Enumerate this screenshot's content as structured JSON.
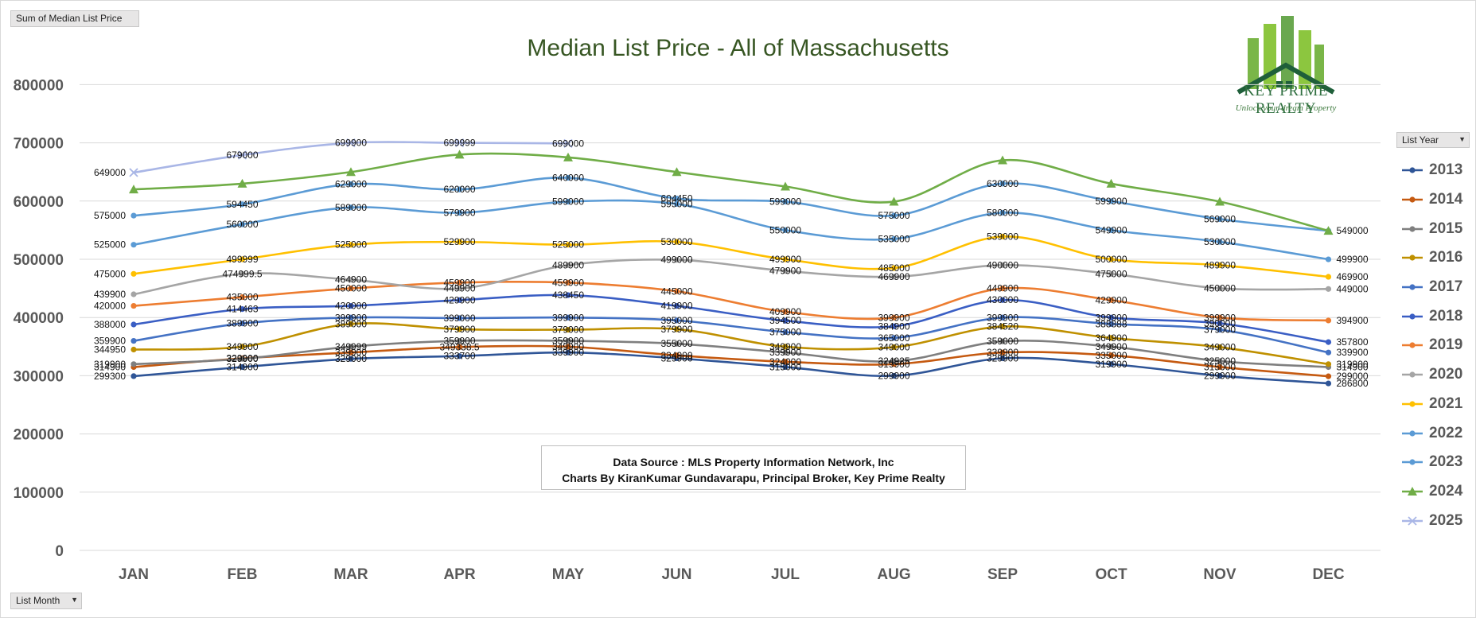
{
  "filters": {
    "sum_field": "Sum of Median List Price",
    "row_field": "List Month",
    "column_field": "List Year"
  },
  "logo": {
    "name": "KEY PRIME REALTY",
    "tagline": "Unlock your dream Property"
  },
  "source_note": {
    "line1": "Data Source : MLS Property Information Network, Inc",
    "line2": "Charts By KiranKumar Gundavarapu, Principal Broker, Key Prime Realty"
  },
  "colors": {
    "title": "#375623",
    "axis_text": "#595959",
    "gridline": "#d9d9d9"
  },
  "chart_data": {
    "type": "line",
    "title": "Median List Price - All of Massachusetts",
    "xlabel": "",
    "ylabel": "",
    "ylim": [
      0,
      800000
    ],
    "yticks": [
      "0",
      "100000",
      "200000",
      "300000",
      "400000",
      "500000",
      "600000",
      "700000",
      "800000"
    ],
    "grid": true,
    "legend_position": "right",
    "categories": [
      "JAN",
      "FEB",
      "MAR",
      "APR",
      "MAY",
      "JUN",
      "JUL",
      "AUG",
      "SEP",
      "OCT",
      "NOV",
      "DEC"
    ],
    "series": [
      {
        "name": "2013",
        "color": "#2f5597",
        "marker": "circle",
        "values": [
          299300,
          314900,
          329000,
          333700,
          339900,
          329900,
          315000,
          299900,
          329900,
          319900,
          299900,
          286800
        ]
      },
      {
        "name": "2014",
        "color": "#c55a11",
        "marker": "circle",
        "values": [
          314900,
          329900,
          339900,
          349338.5,
          349900,
          334900,
          324000,
          319900,
          339900,
          335000,
          315000,
          299000
        ]
      },
      {
        "name": "2015",
        "color": "#7f7f7f",
        "marker": "circle",
        "values": [
          319900,
          329000,
          349999,
          359900,
          359900,
          355000,
          339900,
          324925,
          359000,
          349900,
          325000,
          314900
        ]
      },
      {
        "name": "2016",
        "color": "#bf9000",
        "marker": "circle",
        "values": [
          344950,
          349900,
          389000,
          379900,
          379000,
          379900,
          349900,
          349000,
          384520,
          364900,
          349000,
          319900
        ]
      },
      {
        "name": "2017",
        "color": "#4472c4",
        "marker": "circle",
        "values": [
          359900,
          389900,
          399900,
          399000,
          399900,
          395000,
          375000,
          365000,
          399900,
          388888,
          379000,
          339900
        ]
      },
      {
        "name": "2018",
        "color": "#3a5ec4",
        "marker": "circle",
        "values": [
          388000,
          414463,
          420000,
          429900,
          438450,
          419900,
          394500,
          384900,
          430000,
          399900,
          390000,
          357800
        ]
      },
      {
        "name": "2019",
        "color": "#ed7d31",
        "marker": "circle",
        "values": [
          420000,
          435000,
          450000,
          459900,
          459900,
          445000,
          409900,
          399900,
          449900,
          429900,
          399900,
          394900
        ]
      },
      {
        "name": "2020",
        "color": "#a5a5a5",
        "marker": "circle",
        "values": [
          439900,
          474999.5,
          464900,
          449900,
          489900,
          499000,
          479900,
          469900,
          490000,
          475000,
          450000,
          449000
        ]
      },
      {
        "name": "2021",
        "color": "#ffc000",
        "marker": "circle",
        "values": [
          475000,
          499999,
          525000,
          529900,
          525000,
          530000,
          499900,
          485000,
          539000,
          500000,
          489900,
          469900
        ]
      },
      {
        "name": "2022",
        "color": "#5b9bd5",
        "marker": "circle",
        "values": [
          525000,
          560000,
          589000,
          579900,
          599000,
          595000,
          550000,
          535000,
          580000,
          549900,
          530000,
          499900
        ]
      },
      {
        "name": "2023",
        "color": "#5b9bd5",
        "marker": "circle",
        "values": [
          575000,
          594450,
          629000,
          620000,
          640000,
          604450,
          599000,
          575000,
          630000,
          599900,
          569000,
          549000
        ]
      },
      {
        "name": "2024",
        "color": "#70ad47",
        "marker": "triangle",
        "values": [
          620000,
          629900,
          649900,
          679900,
          675000,
          649900,
          625000,
          599000,
          670000,
          629900,
          599000,
          549000
        ]
      },
      {
        "name": "2025",
        "color": "#a9b6e6",
        "marker": "cross",
        "values": [
          649000,
          679000,
          699900,
          699999,
          699000,
          null,
          null,
          null,
          null,
          null,
          null,
          null
        ]
      }
    ],
    "data_labels": [
      {
        "c": 0,
        "v": 649000,
        "text": "649000"
      },
      {
        "c": 1,
        "v": 679000,
        "text": "679000"
      },
      {
        "c": 2,
        "v": 699900,
        "text": "699900"
      },
      {
        "c": 3,
        "v": 699999,
        "text": "699999"
      },
      {
        "c": 4,
        "v": 699000,
        "text": "699000"
      },
      {
        "c": 0,
        "v": 575000,
        "text": "575000"
      },
      {
        "c": 1,
        "v": 594450,
        "text": "594450"
      },
      {
        "c": 2,
        "v": 629000,
        "text": "629000"
      },
      {
        "c": 3,
        "v": 620000,
        "text": "620000"
      },
      {
        "c": 4,
        "v": 640000,
        "text": "640000"
      },
      {
        "c": 5,
        "v": 604450,
        "text": "604450"
      },
      {
        "c": 6,
        "v": 599000,
        "text": "599000"
      },
      {
        "c": 7,
        "v": 575000,
        "text": "575000"
      },
      {
        "c": 8,
        "v": 630000,
        "text": "630000"
      },
      {
        "c": 9,
        "v": 599900,
        "text": "599900"
      },
      {
        "c": 10,
        "v": 569000,
        "text": "569000"
      },
      {
        "c": 11,
        "v": 549000,
        "text": "549000"
      },
      {
        "c": 0,
        "v": 525000,
        "text": "525000"
      },
      {
        "c": 1,
        "v": 560000,
        "text": "560000"
      },
      {
        "c": 2,
        "v": 589000,
        "text": "589000"
      },
      {
        "c": 3,
        "v": 579900,
        "text": "579900"
      },
      {
        "c": 4,
        "v": 599000,
        "text": "599000"
      },
      {
        "c": 5,
        "v": 595000,
        "text": "595000"
      },
      {
        "c": 6,
        "v": 550000,
        "text": "550000"
      },
      {
        "c": 7,
        "v": 535000,
        "text": "535000"
      },
      {
        "c": 8,
        "v": 580000,
        "text": "580000"
      },
      {
        "c": 9,
        "v": 549900,
        "text": "549900"
      },
      {
        "c": 10,
        "v": 530000,
        "text": "530000"
      },
      {
        "c": 11,
        "v": 499900,
        "text": "499900"
      },
      {
        "c": 0,
        "v": 475000,
        "text": "475000"
      },
      {
        "c": 1,
        "v": 499999,
        "text": "499999"
      },
      {
        "c": 2,
        "v": 525000,
        "text": "525000"
      },
      {
        "c": 3,
        "v": 529900,
        "text": "529900"
      },
      {
        "c": 4,
        "v": 525000,
        "text": "525000"
      },
      {
        "c": 5,
        "v": 530000,
        "text": "530000"
      },
      {
        "c": 6,
        "v": 499900,
        "text": "499900"
      },
      {
        "c": 7,
        "v": 485000,
        "text": "485000"
      },
      {
        "c": 8,
        "v": 539000,
        "text": "539000"
      },
      {
        "c": 9,
        "v": 500000,
        "text": "500000"
      },
      {
        "c": 10,
        "v": 489900,
        "text": "489900"
      },
      {
        "c": 11,
        "v": 469900,
        "text": "469900"
      },
      {
        "c": 0,
        "v": 439900,
        "text": "439900"
      },
      {
        "c": 1,
        "v": 474999.5,
        "text": "474999.5"
      },
      {
        "c": 2,
        "v": 464900,
        "text": "464900"
      },
      {
        "c": 3,
        "v": 449900,
        "text": "449900"
      },
      {
        "c": 4,
        "v": 489900,
        "text": "489900"
      },
      {
        "c": 5,
        "v": 499000,
        "text": "499000"
      },
      {
        "c": 6,
        "v": 479900,
        "text": "479900"
      },
      {
        "c": 7,
        "v": 469900,
        "text": "469900"
      },
      {
        "c": 8,
        "v": 490000,
        "text": "490000"
      },
      {
        "c": 9,
        "v": 475000,
        "text": "475000"
      },
      {
        "c": 10,
        "v": 450000,
        "text": "450000"
      },
      {
        "c": 11,
        "v": 449000,
        "text": "449000"
      },
      {
        "c": 0,
        "v": 420000,
        "text": "420000"
      },
      {
        "c": 1,
        "v": 435000,
        "text": "435000"
      },
      {
        "c": 2,
        "v": 450000,
        "text": "450000"
      },
      {
        "c": 3,
        "v": 459900,
        "text": "459900"
      },
      {
        "c": 4,
        "v": 459900,
        "text": "459900"
      },
      {
        "c": 5,
        "v": 445000,
        "text": "445000"
      },
      {
        "c": 6,
        "v": 409900,
        "text": "409900"
      },
      {
        "c": 7,
        "v": 399900,
        "text": "399900"
      },
      {
        "c": 8,
        "v": 449900,
        "text": "449900"
      },
      {
        "c": 9,
        "v": 429900,
        "text": "429900"
      },
      {
        "c": 10,
        "v": 399900,
        "text": "399900"
      },
      {
        "c": 11,
        "v": 394900,
        "text": "394900"
      },
      {
        "c": 0,
        "v": 388000,
        "text": "388000"
      },
      {
        "c": 1,
        "v": 414463,
        "text": "414463"
      },
      {
        "c": 2,
        "v": 420000,
        "text": "420000"
      },
      {
        "c": 3,
        "v": 429900,
        "text": "429900"
      },
      {
        "c": 4,
        "v": 438450,
        "text": "438450"
      },
      {
        "c": 5,
        "v": 419900,
        "text": "419900"
      },
      {
        "c": 6,
        "v": 394500,
        "text": "394500"
      },
      {
        "c": 7,
        "v": 384900,
        "text": "384900"
      },
      {
        "c": 8,
        "v": 430000,
        "text": "430000"
      },
      {
        "c": 9,
        "v": 399900,
        "text": "399900"
      },
      {
        "c": 10,
        "v": 390000,
        "text": "390000"
      },
      {
        "c": 11,
        "v": 357800,
        "text": "357800"
      },
      {
        "c": 0,
        "v": 359900,
        "text": "359900"
      },
      {
        "c": 1,
        "v": 389900,
        "text": "389900"
      },
      {
        "c": 2,
        "v": 399900,
        "text": "399900"
      },
      {
        "c": 3,
        "v": 399000,
        "text": "399000"
      },
      {
        "c": 4,
        "v": 399900,
        "text": "399900"
      },
      {
        "c": 5,
        "v": 395000,
        "text": "395000"
      },
      {
        "c": 6,
        "v": 375000,
        "text": "375000"
      },
      {
        "c": 7,
        "v": 365000,
        "text": "365000"
      },
      {
        "c": 8,
        "v": 399900,
        "text": "399900"
      },
      {
        "c": 9,
        "v": 388888,
        "text": "388888"
      },
      {
        "c": 10,
        "v": 379000,
        "text": "379000"
      },
      {
        "c": 11,
        "v": 339900,
        "text": "339900"
      },
      {
        "c": 0,
        "v": 344950,
        "text": "344950"
      },
      {
        "c": 1,
        "v": 349900,
        "text": "349900"
      },
      {
        "c": 2,
        "v": 389000,
        "text": "389000"
      },
      {
        "c": 3,
        "v": 379900,
        "text": "379900"
      },
      {
        "c": 4,
        "v": 379000,
        "text": "379000"
      },
      {
        "c": 5,
        "v": 379900,
        "text": "379900"
      },
      {
        "c": 6,
        "v": 349900,
        "text": "349900"
      },
      {
        "c": 7,
        "v": 349000,
        "text": "349000"
      },
      {
        "c": 8,
        "v": 384520,
        "text": "384520"
      },
      {
        "c": 9,
        "v": 364900,
        "text": "364900"
      },
      {
        "c": 10,
        "v": 349000,
        "text": "349000"
      },
      {
        "c": 11,
        "v": 319900,
        "text": "319900"
      },
      {
        "c": 0,
        "v": 319900,
        "text": "319900"
      },
      {
        "c": 1,
        "v": 329000,
        "text": "329000"
      },
      {
        "c": 2,
        "v": 349999,
        "text": "349999"
      },
      {
        "c": 3,
        "v": 359900,
        "text": "359900"
      },
      {
        "c": 4,
        "v": 359900,
        "text": "359900"
      },
      {
        "c": 5,
        "v": 355000,
        "text": "355000"
      },
      {
        "c": 6,
        "v": 339900,
        "text": "339900"
      },
      {
        "c": 7,
        "v": 324925,
        "text": "324925"
      },
      {
        "c": 8,
        "v": 359000,
        "text": "359000"
      },
      {
        "c": 9,
        "v": 349900,
        "text": "349900"
      },
      {
        "c": 10,
        "v": 325000,
        "text": "325000"
      },
      {
        "c": 11,
        "v": 314900,
        "text": "314900"
      },
      {
        "c": 0,
        "v": 314900,
        "text": "314900"
      },
      {
        "c": 1,
        "v": 329900,
        "text": "329900"
      },
      {
        "c": 2,
        "v": 339900,
        "text": "339900"
      },
      {
        "c": 3,
        "v": 349338.5,
        "text": "349338.5"
      },
      {
        "c": 4,
        "v": 349900,
        "text": "349900"
      },
      {
        "c": 5,
        "v": 334900,
        "text": "334900"
      },
      {
        "c": 6,
        "v": 324000,
        "text": "324000"
      },
      {
        "c": 7,
        "v": 319900,
        "text": "319900"
      },
      {
        "c": 8,
        "v": 339900,
        "text": "339900"
      },
      {
        "c": 9,
        "v": 335000,
        "text": "335000"
      },
      {
        "c": 10,
        "v": 315000,
        "text": "315000"
      },
      {
        "c": 11,
        "v": 299000,
        "text": "299000"
      },
      {
        "c": 0,
        "v": 299300,
        "text": "299300"
      },
      {
        "c": 1,
        "v": 314900,
        "text": "314900"
      },
      {
        "c": 2,
        "v": 329000,
        "text": "329000"
      },
      {
        "c": 3,
        "v": 333700,
        "text": "333700"
      },
      {
        "c": 4,
        "v": 339900,
        "text": "339900"
      },
      {
        "c": 5,
        "v": 329900,
        "text": "329900"
      },
      {
        "c": 6,
        "v": 315000,
        "text": "315000"
      },
      {
        "c": 7,
        "v": 299900,
        "text": "299900"
      },
      {
        "c": 8,
        "v": 329900,
        "text": "329900"
      },
      {
        "c": 9,
        "v": 319900,
        "text": "319900"
      },
      {
        "c": 10,
        "v": 299900,
        "text": "299900"
      },
      {
        "c": 11,
        "v": 286800,
        "text": "286800"
      }
    ]
  }
}
